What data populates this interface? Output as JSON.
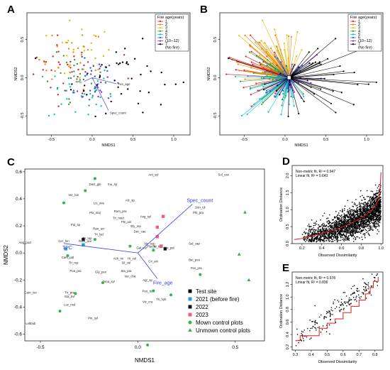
{
  "panels": {
    "a": "A",
    "b": "B",
    "c": "C",
    "d": "D",
    "e": "E"
  },
  "colors": {
    "fire_age": [
      "#e41a1c",
      "#ff7f00",
      "#d8c200",
      "#33a02c",
      "#00c4d0",
      "#1f66d9",
      "#8a2be2",
      "#000000"
    ],
    "vector": "#3344ee",
    "test_site": "#000000",
    "y2021": "#2e9ad6",
    "y2022": "#111111",
    "y2023": "#f25f7a",
    "mown": "#33b34a",
    "unmown": "#33b34a",
    "fit_line": "#e41a1c"
  },
  "chart_data": [
    {
      "id": "A",
      "type": "scatter",
      "xlabel": "NMDS1",
      "ylabel": "NMDS2",
      "xlim": [
        -0.8,
        1.2
      ],
      "ylim": [
        -0.75,
        0.85
      ],
      "xticks": [
        "-0.5",
        "0.0",
        "0.5",
        "1.0"
      ],
      "xtick_values": [
        -0.5,
        0,
        0.5,
        1.0
      ],
      "yticks": [
        "-0.5",
        "0.0",
        "0.5"
      ],
      "ytick_values": [
        -0.5,
        0,
        0.5
      ],
      "legend": {
        "title": "Fire age(years)",
        "entries": [
          "1",
          "2",
          "3",
          "4",
          "5",
          "6",
          "(10--12)",
          "7",
          "(No fire)"
        ],
        "position": "top-right"
      },
      "vectors": [
        {
          "label": "TPC",
          "x": -0.1,
          "y": -0.05
        },
        {
          "label": "Fire_age",
          "x": 0.3,
          "y": -0.08
        },
        {
          "label": "Spec_count",
          "x": 0.2,
          "y": -0.43
        }
      ]
    },
    {
      "id": "B",
      "type": "scatter",
      "xlabel": "NMDS1",
      "ylabel": "NMDS2",
      "xlim": [
        -0.8,
        1.2
      ],
      "ylim": [
        -0.75,
        0.85
      ],
      "xticks": [
        "-0.5",
        "0.0",
        "0.5",
        "1.0"
      ],
      "xtick_values": [
        -0.5,
        0,
        0.5,
        1.0
      ],
      "yticks": [
        "-0.5",
        "0.0",
        "0.5"
      ],
      "ytick_values": [
        -0.5,
        0,
        0.5
      ],
      "legend": {
        "title": "Fire age(years)",
        "entries": [
          "1",
          "2",
          "3",
          "4",
          "5",
          "6",
          "(10--12)",
          "7",
          "(No fire)"
        ],
        "position": "top-right"
      },
      "centroid": {
        "x": 0.05,
        "y": 0.0
      }
    },
    {
      "id": "C",
      "type": "scatter",
      "xlabel": "NMDS1",
      "ylabel": "NMDS2",
      "xlim": [
        -0.58,
        0.65
      ],
      "ylim": [
        -0.65,
        0.62
      ],
      "xticks": [
        "-0.5",
        "0.0",
        "0.5"
      ],
      "xtick_values": [
        -0.5,
        0,
        0.5
      ],
      "yticks": [
        "-0.6",
        "-0.4",
        "-0.2",
        "0.0",
        "0.2",
        "0.4",
        "0.6"
      ],
      "ytick_values": [
        -0.6,
        -0.4,
        -0.2,
        0,
        0.2,
        0.4,
        0.6
      ],
      "legend_entries": [
        "Test site",
        "2021 (before fire)",
        "2022",
        "2023",
        "Mown control plots",
        "Unmown control plots"
      ],
      "vectors": [
        {
          "label": "Spec_count",
          "x": 0.28,
          "y": 0.36
        },
        {
          "label": "TPC",
          "x": -0.38,
          "y": 0.07
        },
        {
          "label": "Fire_age",
          "x": 0.1,
          "y": -0.19
        }
      ],
      "species": [
        {
          "label": "Dact_glo",
          "x": -0.22,
          "y": 0.5
        },
        {
          "label": "Inu_sp",
          "x": -0.13,
          "y": 0.5
        },
        {
          "label": "Ant_syl",
          "x": 0.08,
          "y": 0.57
        },
        {
          "label": "Sol_can",
          "x": 0.44,
          "y": 0.57
        },
        {
          "label": "Ver_lon",
          "x": -0.33,
          "y": 0.42
        },
        {
          "label": "Lis_ova",
          "x": -0.2,
          "y": 0.36
        },
        {
          "label": "Alc_sp",
          "x": -0.04,
          "y": 0.38
        },
        {
          "label": "Rum_pra",
          "x": -0.09,
          "y": 0.3
        },
        {
          "label": "Son_uli",
          "x": 0.32,
          "y": 0.33
        },
        {
          "label": "Phl_pra",
          "x": 0.31,
          "y": 0.29
        },
        {
          "label": "Pla_maj",
          "x": -0.22,
          "y": 0.29
        },
        {
          "label": "Ang_syl",
          "x": 0.04,
          "y": 0.26
        },
        {
          "label": "Tri_med",
          "x": -0.1,
          "y": 0.25
        },
        {
          "label": "Pol_sp",
          "x": -0.32,
          "y": 0.2
        },
        {
          "label": "Ran_acr",
          "x": -0.2,
          "y": 0.17
        },
        {
          "label": "Ple_vel",
          "x": -0.06,
          "y": 0.22
        },
        {
          "label": "Ely_rep",
          "x": -0.01,
          "y": 0.19
        },
        {
          "label": "Tri_lyd",
          "x": -0.2,
          "y": 0.13
        },
        {
          "label": "Dec_cae",
          "x": 0.01,
          "y": 0.15
        },
        {
          "label": "Aeg_pod",
          "x": -0.58,
          "y": 0.07
        },
        {
          "label": "Cer_fon",
          "x": -0.38,
          "y": 0.08
        },
        {
          "label": "Rum_ace",
          "x": -0.27,
          "y": 0.08
        },
        {
          "label": "Tri_tup",
          "x": -0.26,
          "y": 0.1
        },
        {
          "label": "Vic_sep",
          "x": 0.06,
          "y": 0.06
        },
        {
          "label": "Poa_tri",
          "x": 0.07,
          "y": 0.04
        },
        {
          "label": "Fic_tup",
          "x": 0.1,
          "y": 0.04
        },
        {
          "label": "Sta_pal",
          "x": 0.16,
          "y": 0.03
        },
        {
          "label": "Gal_ver",
          "x": 0.02,
          "y": 0.03
        },
        {
          "label": "Sal_cap",
          "x": 0.29,
          "y": 0.06
        },
        {
          "label": "Cam_pat",
          "x": -0.36,
          "y": -0.04
        },
        {
          "label": "Ach_mi",
          "x": -0.1,
          "y": -0.05
        },
        {
          "label": "Hi_vul",
          "x": -0.03,
          "y": -0.05
        },
        {
          "label": "Tri_rep",
          "x": -0.33,
          "y": -0.08
        },
        {
          "label": "Sil_vul",
          "x": -0.06,
          "y": -0.08
        },
        {
          "label": "Cir_arv",
          "x": 0.08,
          "y": -0.07
        },
        {
          "label": "Bet_pen",
          "x": 0.29,
          "y": -0.06
        },
        {
          "label": "Poa_pra",
          "x": -0.32,
          "y": -0.14
        },
        {
          "label": "Gly_pen",
          "x": -0.19,
          "y": -0.15
        },
        {
          "label": "Sta_pra",
          "x": -0.06,
          "y": -0.14
        },
        {
          "label": "Ver_cha",
          "x": -0.04,
          "y": -0.18
        },
        {
          "label": "Fes_pra",
          "x": 0.3,
          "y": -0.12
        },
        {
          "label": "Oma_syl",
          "x": -0.15,
          "y": -0.22
        },
        {
          "label": "Agr_sp",
          "x": 0.05,
          "y": -0.21
        },
        {
          "label": "Cam_cer",
          "x": -0.55,
          "y": -0.3
        },
        {
          "label": "Tri_pra",
          "x": -0.35,
          "y": -0.3
        },
        {
          "label": "Gal_bvf",
          "x": -0.35,
          "y": -0.33
        },
        {
          "label": "Poo_tre",
          "x": 0.05,
          "y": -0.29
        },
        {
          "label": "Luz_mul",
          "x": -0.35,
          "y": -0.39
        },
        {
          "label": "Vic_cra",
          "x": 0.05,
          "y": -0.37
        },
        {
          "label": "Tri_hyb",
          "x": 0.12,
          "y": -0.35
        },
        {
          "label": "Pin_syl",
          "x": -0.23,
          "y": -0.49
        },
        {
          "label": "Lebbub",
          "x": -0.55,
          "y": -0.53
        }
      ]
    },
    {
      "id": "D",
      "type": "scatter",
      "xlabel": "Observed Dissimilarity",
      "ylabel": "Ordination Distance",
      "xlim": [
        0.1,
        1.02
      ],
      "ylim": [
        0.0,
        2.3
      ],
      "xticks": [
        "0.2",
        "0.4",
        "0.6",
        "0.8",
        "1.0"
      ],
      "xtick_values": [
        0.2,
        0.4,
        0.6,
        0.8,
        1.0
      ],
      "yticks": [
        "0.0",
        "0.5",
        "1.0",
        "1.5",
        "2.0"
      ],
      "ytick_values": [
        0,
        0.5,
        1.0,
        1.5,
        2.0
      ],
      "fit_labels": [
        "Non-metric fit, R² = 0.947",
        "Linear fit, R² = 0.643"
      ],
      "stress_curve": [
        [
          0.12,
          0.12
        ],
        [
          0.2,
          0.15
        ],
        [
          0.3,
          0.22
        ],
        [
          0.4,
          0.3
        ],
        [
          0.5,
          0.38
        ],
        [
          0.6,
          0.48
        ],
        [
          0.7,
          0.6
        ],
        [
          0.8,
          0.75
        ],
        [
          0.9,
          0.95
        ],
        [
          0.97,
          1.25
        ],
        [
          0.99,
          1.5
        ],
        [
          1.0,
          2.1
        ]
      ]
    },
    {
      "id": "E",
      "type": "scatter",
      "xlabel": "Observed Dissimilarity",
      "ylabel": "Ordination Distance",
      "xlim": [
        0.28,
        0.85
      ],
      "ylim": [
        0.15,
        1.4
      ],
      "xticks": [
        "0.3",
        "0.4",
        "0.5",
        "0.6",
        "0.7",
        "0.8"
      ],
      "xtick_values": [
        0.3,
        0.4,
        0.5,
        0.6,
        0.7,
        0.8
      ],
      "yticks": [
        "0.2",
        "0.4",
        "0.6",
        "0.8",
        "1.0",
        "1.2"
      ],
      "ytick_values": [
        0.2,
        0.4,
        0.6,
        0.8,
        1.0,
        1.2
      ],
      "fit_labels": [
        "Non-metric fit, R² = 0.978",
        "Linear fit, R² = 0.836"
      ],
      "step_curve": [
        [
          0.3,
          0.3
        ],
        [
          0.33,
          0.3
        ],
        [
          0.33,
          0.38
        ],
        [
          0.45,
          0.38
        ],
        [
          0.45,
          0.5
        ],
        [
          0.5,
          0.5
        ],
        [
          0.5,
          0.58
        ],
        [
          0.55,
          0.58
        ],
        [
          0.55,
          0.65
        ],
        [
          0.6,
          0.65
        ],
        [
          0.6,
          0.75
        ],
        [
          0.65,
          0.75
        ],
        [
          0.65,
          0.85
        ],
        [
          0.7,
          0.85
        ],
        [
          0.7,
          0.95
        ],
        [
          0.74,
          0.95
        ],
        [
          0.74,
          1.05
        ],
        [
          0.77,
          1.05
        ],
        [
          0.77,
          1.15
        ],
        [
          0.79,
          1.15
        ],
        [
          0.79,
          1.25
        ],
        [
          0.82,
          1.25
        ],
        [
          0.82,
          1.32
        ]
      ]
    }
  ]
}
